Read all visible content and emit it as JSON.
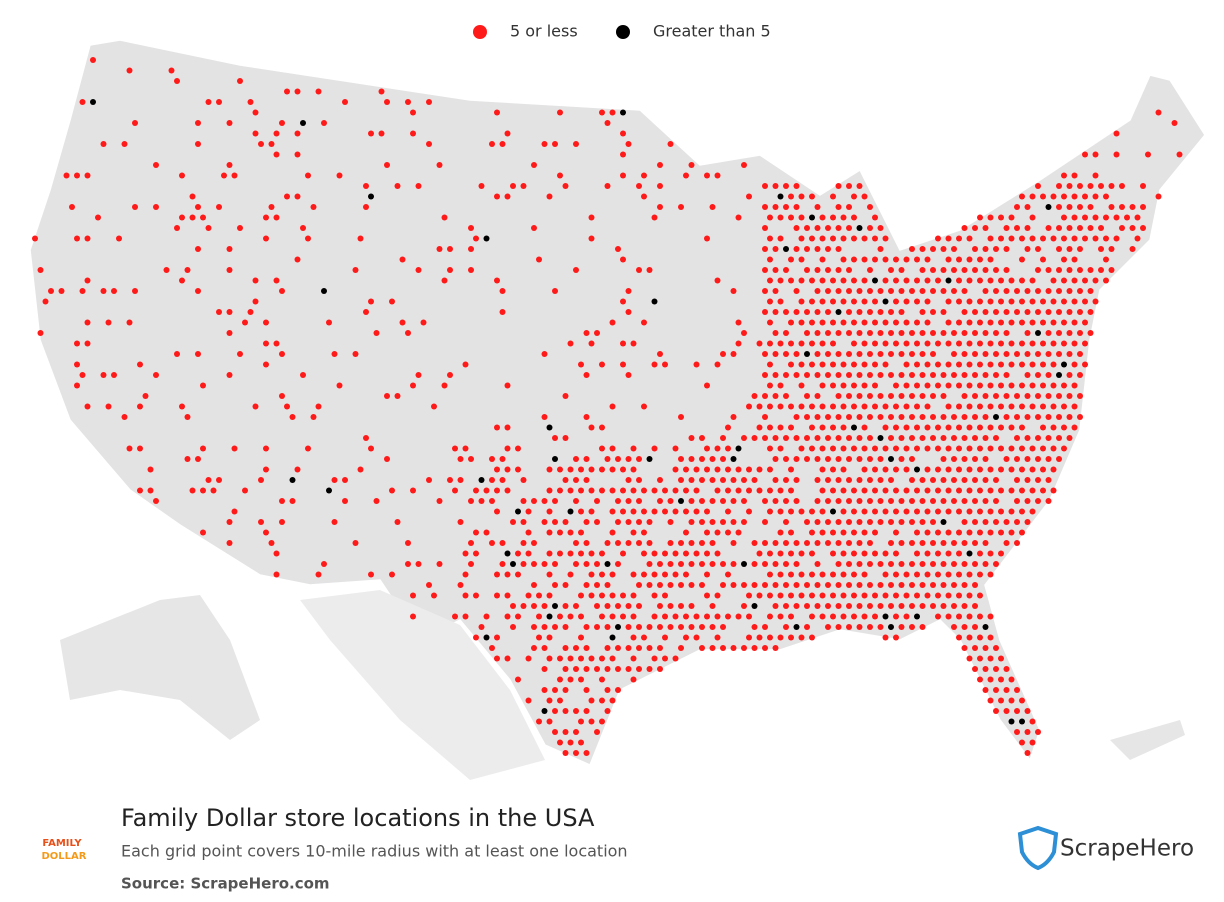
{
  "legend": {
    "items": [
      {
        "label": "5 or less",
        "color": "#ff1a1a"
      },
      {
        "label": "Greater than 5",
        "color": "#000000"
      }
    ]
  },
  "footer": {
    "title": "Family Dollar store locations in the USA",
    "subtitle": "Each grid point covers 10-mile radius with at least one location",
    "source": "Source: ScrapeHero.com",
    "brand": "ScrapeHero",
    "logo_top": "FAMILY",
    "logo_bottom": "DOLLAR"
  }
}
